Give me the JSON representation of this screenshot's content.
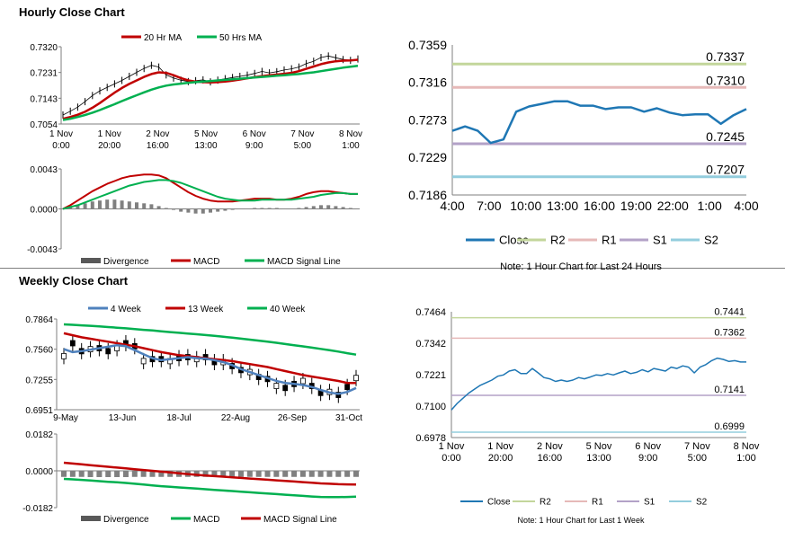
{
  "sections": {
    "hourly_title": "Hourly Close Chart",
    "weekly_title": "Weekly Close Chart"
  },
  "colors": {
    "red": "#c00000",
    "green": "#00b050",
    "blue": "#1f77b4",
    "steel": "#4f81bd",
    "r2": "#c3d69b",
    "r1": "#e6b9b8",
    "s1": "#b3a2c7",
    "s2": "#93cddd",
    "bar": "#595959"
  },
  "chart_data": [
    {
      "id": "hourly_price",
      "type": "line",
      "legend": [
        "20 Hr MA",
        "50 Hrs MA"
      ],
      "yticks": [
        "0.7320",
        "0.7231",
        "0.7143",
        "0.7054"
      ],
      "ylim": [
        0.7054,
        0.732
      ],
      "xticks": [
        [
          "1 Nov",
          "0:00"
        ],
        [
          "1 Nov",
          "20:00"
        ],
        [
          "2 Nov",
          "16:00"
        ],
        [
          "5 Nov",
          "13:00"
        ],
        [
          "6 Nov",
          "9:00"
        ],
        [
          "7 Nov",
          "5:00"
        ],
        [
          "8 Nov",
          "1:00"
        ]
      ],
      "series": [
        {
          "name": "Close",
          "values": [
            0.7085,
            0.7098,
            0.7112,
            0.7131,
            0.7152,
            0.7168,
            0.718,
            0.7192,
            0.7204,
            0.7218,
            0.7232,
            0.7245,
            0.7256,
            0.725,
            0.7223,
            0.7212,
            0.7205,
            0.72,
            0.7203,
            0.7206,
            0.7199,
            0.7205,
            0.721,
            0.7214,
            0.7218,
            0.7222,
            0.7228,
            0.7235,
            0.723,
            0.7234,
            0.724,
            0.7244,
            0.725,
            0.7262,
            0.727,
            0.7283,
            0.7288,
            0.7282,
            0.7276,
            0.7273,
            0.7278
          ]
        },
        {
          "name": "20 Hr MA",
          "values": [
            0.7072,
            0.7078,
            0.7086,
            0.7096,
            0.711,
            0.7126,
            0.7144,
            0.7162,
            0.7178,
            0.7192,
            0.7204,
            0.7216,
            0.7226,
            0.7232,
            0.723,
            0.7222,
            0.7212,
            0.7204,
            0.72,
            0.7198,
            0.7197,
            0.7198,
            0.72,
            0.7203,
            0.7207,
            0.7211,
            0.7215,
            0.7219,
            0.7222,
            0.7224,
            0.7227,
            0.723,
            0.7236,
            0.7244,
            0.7252,
            0.726,
            0.7266,
            0.727,
            0.7272,
            0.7273,
            0.7275
          ]
        },
        {
          "name": "50 Hrs MA",
          "values": [
            0.7068,
            0.7072,
            0.7078,
            0.7085,
            0.7093,
            0.7102,
            0.7112,
            0.7122,
            0.7133,
            0.7143,
            0.7153,
            0.7163,
            0.7172,
            0.718,
            0.7186,
            0.719,
            0.7193,
            0.7196,
            0.7198,
            0.72,
            0.7202,
            0.7204,
            0.7206,
            0.7208,
            0.721,
            0.7212,
            0.7214,
            0.7216,
            0.7218,
            0.722,
            0.7222,
            0.7224,
            0.7226,
            0.7229,
            0.7232,
            0.7236,
            0.724,
            0.7244,
            0.7248,
            0.7251,
            0.7254
          ]
        }
      ]
    },
    {
      "id": "hourly_macd",
      "type": "line",
      "legend": [
        "Divergence",
        "MACD",
        "MACD Signal Line"
      ],
      "yticks": [
        "0.0043",
        "0.0000",
        "-0.0043"
      ],
      "ylim": [
        -0.0043,
        0.0043
      ],
      "series": [
        {
          "name": "Divergence",
          "values": [
            0.0,
            0.0002,
            0.0004,
            0.0006,
            0.0008,
            0.0009,
            0.001,
            0.001,
            0.0009,
            0.0008,
            0.0007,
            0.0006,
            0.0005,
            0.0003,
            0.0001,
            -0.0001,
            -0.0003,
            -0.0004,
            -0.0005,
            -0.0005,
            -0.0004,
            -0.0003,
            -0.0002,
            -0.0001,
            0.0,
            0.0,
            0.0001,
            0.0001,
            0.0001,
            0.0001,
            0.0,
            0.0,
            0.0001,
            0.0002,
            0.0003,
            0.0004,
            0.0004,
            0.0003,
            0.0002,
            0.0001,
            0.0
          ]
        },
        {
          "name": "MACD",
          "values": [
            0.0,
            0.0004,
            0.0009,
            0.0014,
            0.0019,
            0.0023,
            0.0027,
            0.003,
            0.0033,
            0.0035,
            0.0036,
            0.0037,
            0.0037,
            0.0036,
            0.0033,
            0.0028,
            0.0023,
            0.0018,
            0.0014,
            0.0011,
            0.0009,
            0.0008,
            0.0008,
            0.0008,
            0.0009,
            0.001,
            0.0011,
            0.0011,
            0.0011,
            0.001,
            0.001,
            0.0011,
            0.0013,
            0.0016,
            0.0018,
            0.0019,
            0.0019,
            0.0018,
            0.0017,
            0.0016,
            0.0016
          ]
        },
        {
          "name": "MACD Signal Line",
          "values": [
            0.0,
            0.0002,
            0.0004,
            0.0007,
            0.001,
            0.0013,
            0.0016,
            0.0019,
            0.0022,
            0.0025,
            0.0027,
            0.0029,
            0.003,
            0.0031,
            0.0031,
            0.003,
            0.0028,
            0.0025,
            0.0022,
            0.0019,
            0.0016,
            0.0013,
            0.0011,
            0.001,
            0.0009,
            0.0009,
            0.0009,
            0.001,
            0.001,
            0.001,
            0.001,
            0.001,
            0.0011,
            0.0012,
            0.0013,
            0.0015,
            0.0016,
            0.0017,
            0.0017,
            0.0016,
            0.0016
          ]
        }
      ]
    },
    {
      "id": "hourly_24h",
      "type": "line",
      "yticks": [
        "0.7359",
        "0.7316",
        "0.7273",
        "0.7229",
        "0.7186"
      ],
      "ylim": [
        0.7186,
        0.7359
      ],
      "xticks": [
        "4:00",
        "7:00",
        "10:00",
        "13:00",
        "16:00",
        "19:00",
        "22:00",
        "1:00",
        "4:00"
      ],
      "legend": [
        "Close",
        "R2",
        "R1",
        "S1",
        "S2"
      ],
      "levels": [
        {
          "name": "R2",
          "value": 0.7337,
          "label": "0.7337"
        },
        {
          "name": "R1",
          "value": 0.731,
          "label": "0.7310"
        },
        {
          "name": "S1",
          "value": 0.7245,
          "label": "0.7245"
        },
        {
          "name": "S2",
          "value": 0.7207,
          "label": "0.7207"
        }
      ],
      "series": [
        {
          "name": "Close",
          "values": [
            0.726,
            0.7265,
            0.726,
            0.7246,
            0.725,
            0.7282,
            0.7288,
            0.7291,
            0.7294,
            0.7294,
            0.7289,
            0.7289,
            0.7285,
            0.7287,
            0.7287,
            0.7282,
            0.7286,
            0.7281,
            0.7278,
            0.7279,
            0.7279,
            0.7268,
            0.7278,
            0.7285
          ]
        }
      ],
      "note": "Note: 1 Hour Chart for Last 24 Hours"
    },
    {
      "id": "weekly_price",
      "type": "line",
      "legend": [
        "4 Week",
        "13 Week",
        "40 Week"
      ],
      "yticks": [
        "0.7864",
        "0.7560",
        "0.7255",
        "0.6951"
      ],
      "ylim": [
        0.6951,
        0.7864
      ],
      "xticks": [
        "9-May",
        "13-Jun",
        "18-Jul",
        "22-Aug",
        "26-Sep",
        "31-Oct"
      ],
      "candles": [
        0.749,
        0.762,
        0.754,
        0.756,
        0.757,
        0.754,
        0.757,
        0.762,
        0.759,
        0.744,
        0.746,
        0.746,
        0.744,
        0.747,
        0.748,
        0.746,
        0.748,
        0.743,
        0.743,
        0.739,
        0.735,
        0.733,
        0.728,
        0.726,
        0.719,
        0.717,
        0.721,
        0.724,
        0.719,
        0.712,
        0.713,
        0.71,
        0.718,
        0.727
      ],
      "series": [
        {
          "name": "4 Week",
          "values": [
            0.756,
            0.753,
            0.754,
            0.7555,
            0.757,
            0.7585,
            0.76,
            0.759,
            0.755,
            0.751,
            0.747,
            0.745,
            0.746,
            0.747,
            0.748,
            0.747,
            0.7465,
            0.745,
            0.743,
            0.74,
            0.736,
            0.733,
            0.73,
            0.727,
            0.724,
            0.722,
            0.721,
            0.72,
            0.718,
            0.715,
            0.7125,
            0.711,
            0.713,
            0.717
          ]
        },
        {
          "name": "13 Week",
          "values": [
            0.772,
            0.77,
            0.768,
            0.7665,
            0.765,
            0.7635,
            0.762,
            0.7605,
            0.759,
            0.757,
            0.755,
            0.753,
            0.7515,
            0.75,
            0.749,
            0.748,
            0.747,
            0.746,
            0.745,
            0.744,
            0.7425,
            0.741,
            0.7395,
            0.738,
            0.736,
            0.734,
            0.732,
            0.73,
            0.7285,
            0.727,
            0.7255,
            0.724,
            0.722,
            0.722
          ]
        },
        {
          "name": "40 Week",
          "values": [
            0.781,
            0.7805,
            0.78,
            0.7795,
            0.779,
            0.7783,
            0.7776,
            0.777,
            0.7762,
            0.7755,
            0.7748,
            0.774,
            0.7732,
            0.7725,
            0.7718,
            0.771,
            0.7702,
            0.7694,
            0.7685,
            0.7676,
            0.7666,
            0.7656,
            0.7646,
            0.7636,
            0.7624,
            0.7612,
            0.76,
            0.7588,
            0.7576,
            0.7563,
            0.755,
            0.7536,
            0.752,
            0.7505
          ]
        }
      ]
    },
    {
      "id": "weekly_macd",
      "type": "line",
      "legend": [
        "Divergence",
        "MACD",
        "MACD Signal Line"
      ],
      "yticks": [
        "0.0182",
        "0.0000",
        "-0.0182"
      ],
      "ylim": [
        -0.0182,
        0.0182
      ],
      "series": [
        {
          "name": "Divergence",
          "values": [
            -0.003,
            -0.003,
            -0.003,
            -0.0031,
            -0.0031,
            -0.0031,
            -0.0031,
            -0.0031,
            -0.003,
            -0.003,
            -0.003,
            -0.003,
            -0.003,
            -0.003,
            -0.003,
            -0.003,
            -0.003,
            -0.003,
            -0.003,
            -0.003,
            -0.003,
            -0.003,
            -0.003,
            -0.003,
            -0.003,
            -0.003,
            -0.003,
            -0.003,
            -0.003,
            -0.003,
            -0.003,
            -0.003,
            -0.003,
            -0.003
          ]
        },
        {
          "name": "MACD",
          "values": [
            -0.004,
            -0.0042,
            -0.0045,
            -0.0048,
            -0.0051,
            -0.0054,
            -0.0057,
            -0.006,
            -0.0064,
            -0.0068,
            -0.0072,
            -0.0076,
            -0.0079,
            -0.0082,
            -0.0085,
            -0.0088,
            -0.0091,
            -0.0094,
            -0.0097,
            -0.01,
            -0.0103,
            -0.0106,
            -0.0109,
            -0.0112,
            -0.0115,
            -0.0118,
            -0.0121,
            -0.0124,
            -0.0127,
            -0.0129,
            -0.013,
            -0.013,
            -0.0129,
            -0.0128
          ]
        },
        {
          "name": "MACD Signal Line",
          "values": [
            0.004,
            0.0036,
            0.0032,
            0.0028,
            0.0024,
            0.002,
            0.0016,
            0.0012,
            0.0008,
            0.0004,
            0.0,
            -0.0004,
            -0.0008,
            -0.0012,
            -0.0016,
            -0.002,
            -0.0023,
            -0.0026,
            -0.0029,
            -0.0032,
            -0.0035,
            -0.0038,
            -0.0041,
            -0.0044,
            -0.0047,
            -0.005,
            -0.0053,
            -0.0056,
            -0.0059,
            -0.0062,
            -0.0064,
            -0.0066,
            -0.0067,
            -0.0068
          ]
        }
      ]
    },
    {
      "id": "weekly_1w",
      "type": "line",
      "yticks": [
        "0.7464",
        "0.7342",
        "0.7221",
        "0.7100",
        "0.6978"
      ],
      "ylim": [
        0.6978,
        0.7464
      ],
      "xticks": [
        [
          "1 Nov",
          "0:00"
        ],
        [
          "1 Nov",
          "20:00"
        ],
        [
          "2 Nov",
          "16:00"
        ],
        [
          "5 Nov",
          "13:00"
        ],
        [
          "6 Nov",
          "9:00"
        ],
        [
          "7 Nov",
          "5:00"
        ],
        [
          "8 Nov",
          "1:00"
        ]
      ],
      "legend": [
        "Close",
        "R2",
        "R1",
        "S1",
        "S2"
      ],
      "levels": [
        {
          "name": "R2",
          "value": 0.7441,
          "label": "0.7441"
        },
        {
          "name": "R1",
          "value": 0.7362,
          "label": "0.7362"
        },
        {
          "name": "S1",
          "value": 0.7141,
          "label": "0.7141"
        },
        {
          "name": "S2",
          "value": 0.6999,
          "label": "0.6999"
        }
      ],
      "series": [
        {
          "name": "Close",
          "values": [
            0.7085,
            0.711,
            0.713,
            0.715,
            0.7165,
            0.718,
            0.719,
            0.72,
            0.7215,
            0.722,
            0.7235,
            0.724,
            0.7225,
            0.7225,
            0.7245,
            0.7228,
            0.721,
            0.7205,
            0.7195,
            0.72,
            0.7195,
            0.72,
            0.721,
            0.7205,
            0.7212,
            0.722,
            0.7218,
            0.7225,
            0.722,
            0.7228,
            0.7235,
            0.7225,
            0.723,
            0.724,
            0.7232,
            0.7245,
            0.724,
            0.7235,
            0.725,
            0.7245,
            0.7255,
            0.725,
            0.7228,
            0.725,
            0.726,
            0.7275,
            0.7285,
            0.728,
            0.7272,
            0.7275,
            0.727,
            0.727
          ]
        }
      ],
      "note": "Note: 1 Hour Chart for Last 1 Week"
    }
  ]
}
